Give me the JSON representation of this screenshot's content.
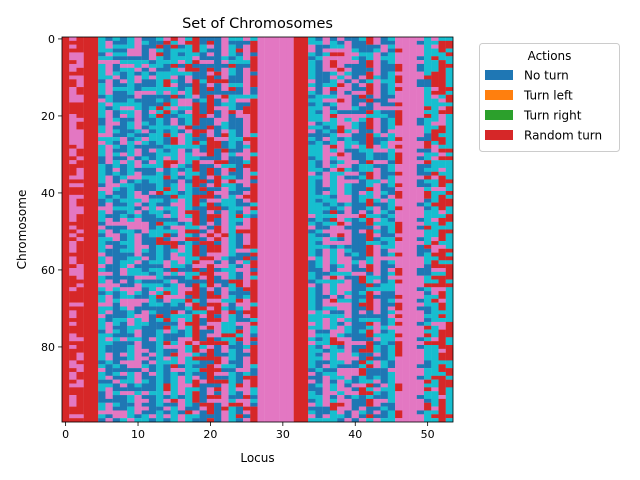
{
  "chart_data": {
    "type": "heatmap",
    "title": "Set of Chromosomes",
    "xlabel": "Locus",
    "ylabel": "Chromosome",
    "n_rows": 100,
    "n_cols": 54,
    "xlim": [
      -0.5,
      53.5
    ],
    "ylim": [
      99.5,
      -0.5
    ],
    "xticks": [
      0,
      10,
      20,
      30,
      40,
      50
    ],
    "yticks": [
      0,
      20,
      40,
      60,
      80
    ],
    "xtick_labels": [
      "0",
      "10",
      "20",
      "30",
      "40",
      "50"
    ],
    "ytick_labels": [
      "0",
      "20",
      "40",
      "60",
      "80"
    ],
    "legend": {
      "title": "Actions",
      "placement": "upper right, outside axes",
      "entries": [
        {
          "label": "No turn",
          "color": "#1f77b4"
        },
        {
          "label": "Turn left",
          "color": "#ff7f0e"
        },
        {
          "label": "Turn right",
          "color": "#2ca02c"
        },
        {
          "label": "Random turn",
          "color": "#d62728"
        }
      ]
    },
    "cell_colors": {
      "blue": "#1f77b4",
      "red": "#d62728",
      "pink": "#e377c2",
      "cyan": "#17becf"
    },
    "column_palettes": [
      [
        "red"
      ],
      [
        "pink",
        "red"
      ],
      [
        "red",
        "pink"
      ],
      [
        "red"
      ],
      [
        "red"
      ],
      [
        "cyan",
        "blue",
        "pink"
      ],
      [
        "pink",
        "blue",
        "cyan"
      ],
      [
        "blue",
        "cyan",
        "pink"
      ],
      [
        "blue",
        "pink",
        "cyan"
      ],
      [
        "cyan",
        "pink",
        "blue"
      ],
      [
        "pink",
        "blue",
        "cyan"
      ],
      [
        "blue",
        "cyan",
        "pink"
      ],
      [
        "blue",
        "pink",
        "cyan"
      ],
      [
        "cyan",
        "blue",
        "pink",
        "red"
      ],
      [
        "blue",
        "red",
        "cyan",
        "pink"
      ],
      [
        "cyan",
        "pink",
        "blue",
        "red"
      ],
      [
        "pink",
        "blue",
        "cyan"
      ],
      [
        "cyan",
        "red",
        "blue",
        "pink"
      ],
      [
        "red",
        "pink",
        "blue",
        "cyan"
      ],
      [
        "blue",
        "red",
        "pink",
        "cyan"
      ],
      [
        "red",
        "pink",
        "blue"
      ],
      [
        "blue",
        "red",
        "pink"
      ],
      [
        "pink",
        "red",
        "blue",
        "cyan"
      ],
      [
        "cyan",
        "blue",
        "red"
      ],
      [
        "blue",
        "cyan",
        "red",
        "pink"
      ],
      [
        "pink",
        "cyan",
        "red",
        "blue"
      ],
      [
        "red",
        "cyan",
        "blue"
      ],
      [
        "pink"
      ],
      [
        "pink"
      ],
      [
        "pink"
      ],
      [
        "pink"
      ],
      [
        "pink"
      ],
      [
        "red"
      ],
      [
        "red"
      ],
      [
        "cyan",
        "blue",
        "pink"
      ],
      [
        "blue",
        "cyan"
      ],
      [
        "pink",
        "blue",
        "cyan"
      ],
      [
        "cyan",
        "red",
        "blue",
        "pink"
      ],
      [
        "pink",
        "red",
        "cyan",
        "blue"
      ],
      [
        "pink",
        "cyan",
        "blue"
      ],
      [
        "blue",
        "cyan",
        "pink"
      ],
      [
        "blue",
        "pink",
        "cyan",
        "red"
      ],
      [
        "red",
        "blue",
        "cyan"
      ],
      [
        "pink",
        "cyan",
        "blue"
      ],
      [
        "blue",
        "pink",
        "cyan"
      ],
      [
        "cyan",
        "blue",
        "pink"
      ],
      [
        "pink",
        "red"
      ],
      [
        "pink"
      ],
      [
        "pink"
      ],
      [
        "pink",
        "blue"
      ],
      [
        "cyan",
        "red",
        "blue"
      ],
      [
        "cyan",
        "pink",
        "red"
      ],
      [
        "red",
        "cyan",
        "pink"
      ],
      [
        "cyan",
        "red"
      ]
    ]
  }
}
